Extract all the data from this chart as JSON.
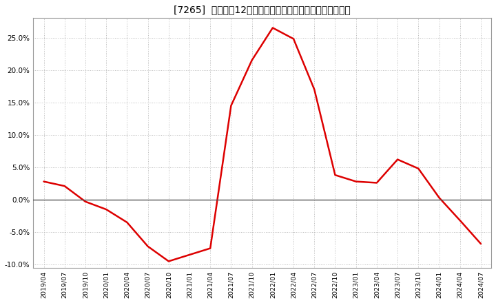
{
  "title": "[7265]  売上高の12か月移動合計の対前年同期増減率の推移",
  "line_color": "#dd0000",
  "background_color": "#ffffff",
  "plot_bg_color": "#ffffff",
  "grid_color": "#bbbbbb",
  "x_labels": [
    "2019/04",
    "2019/07",
    "2019/10",
    "2020/01",
    "2020/04",
    "2020/07",
    "2020/10",
    "2021/01",
    "2021/04",
    "2021/07",
    "2021/10",
    "2022/01",
    "2022/04",
    "2022/07",
    "2022/10",
    "2023/01",
    "2023/04",
    "2023/07",
    "2023/10",
    "2024/01",
    "2024/04",
    "2024/07"
  ],
  "values": [
    2.8,
    2.1,
    -0.3,
    -1.5,
    -3.5,
    -7.2,
    -9.5,
    -8.5,
    -7.5,
    14.5,
    21.5,
    26.5,
    24.8,
    17.0,
    3.8,
    2.8,
    2.6,
    6.2,
    4.8,
    0.3,
    -3.2,
    -6.8
  ],
  "ylim": [
    -10.5,
    28.0
  ],
  "yticks": [
    -10.0,
    -5.0,
    0.0,
    5.0,
    10.0,
    15.0,
    20.0,
    25.0
  ],
  "zero_line_color": "#555555",
  "spine_color": "#999999",
  "title_bracket_open": "[",
  "title_bracket_close": "]",
  "title_code": "7265",
  "title_jp": "  売上高の12か月移動合計の対前年同期増減率の推移"
}
